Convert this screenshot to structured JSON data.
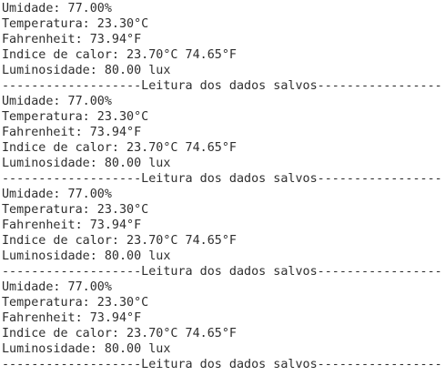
{
  "lines": [
    "Umidade: 77.00%",
    "Temperatura: 23.30°C",
    "Fahrenheit: 73.94°F",
    "Indice de calor: 23.70°C 74.65°F",
    "Luminosidade: 80.00 lux",
    "-------------------Leitura dos dados salvos-----------------",
    "Umidade: 77.00%",
    "Temperatura: 23.30°C",
    "Fahrenheit: 73.94°F",
    "Indice de calor: 23.70°C 74.65°F",
    "Luminosidade: 80.00 lux",
    "-------------------Leitura dos dados salvos-----------------",
    "Umidade: 77.00%",
    "Temperatura: 23.30°C",
    "Fahrenheit: 73.94°F",
    "Indice de calor: 23.70°C 74.65°F",
    "Luminosidade: 80.00 lux",
    "-------------------Leitura dos dados salvos-----------------",
    "Umidade: 77.00%",
    "Temperatura: 23.30°C",
    "Fahrenheit: 73.94°F",
    "Indice de calor: 23.70°C 74.65°F",
    "Luminosidade: 80.00 lux",
    "-------------------Leitura dos dados salvos-----------------"
  ]
}
